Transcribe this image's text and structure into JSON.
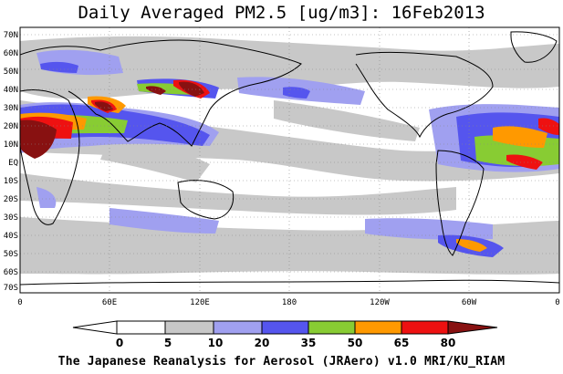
{
  "title": "Daily Averaged PM2.5 [ug/m3]: 16Feb2013",
  "footer": "The Japanese Reanalysis for Aerosol (JRAero) v1.0 MRI/KU_RIAM",
  "lat_labels": [
    "70N",
    "60N",
    "50N",
    "40N",
    "30N",
    "20N",
    "10N",
    "EQ",
    "10S",
    "20S",
    "30S",
    "40S",
    "50S",
    "60S",
    "70S"
  ],
  "lon_labels": [
    "0",
    "60E",
    "120E",
    "180",
    "120W",
    "60W",
    "0"
  ],
  "colorbar": {
    "labels": [
      "0",
      "5",
      "10",
      "20",
      "35",
      "50",
      "65",
      "80"
    ],
    "colors": [
      "#ffffff",
      "#c8c8c8",
      "#a0a0f0",
      "#5555ee",
      "#88cc33",
      "#ff9900",
      "#ee1111",
      "#881111"
    ]
  },
  "map": {
    "colors": {
      "gray": "#c8c8c8",
      "light_blue": "#a0a0f0",
      "blue": "#5555ee",
      "green": "#88cc33",
      "orange": "#ff9900",
      "red": "#ee1111",
      "dark_red": "#881111"
    }
  }
}
